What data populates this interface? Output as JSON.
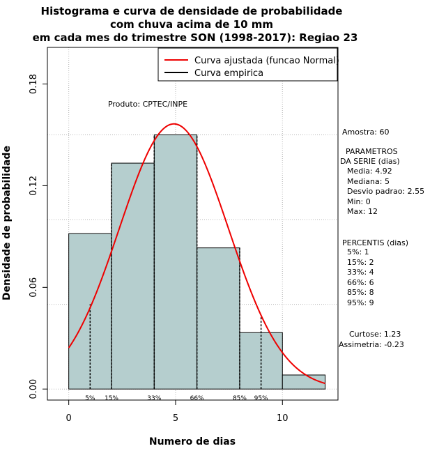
{
  "chart_data": {
    "type": "bar",
    "title_lines": [
      "Histograma e curva de densidade de probabilidade",
      "com chuva acima de 10 mm",
      "em cada mes do trimestre SON (1998-2017): Regiao 23"
    ],
    "xlabel": "Numero de dias",
    "ylabel": "Densidade de probabilidade",
    "xlim": [
      -1,
      12.6
    ],
    "ylim": [
      -0.0065,
      0.2016
    ],
    "x_ticks": [
      0,
      5,
      10
    ],
    "y_ticks": [
      0.0,
      0.06,
      0.12,
      0.18
    ],
    "y_tick_labels": [
      "0.00",
      "0.06",
      "0.12",
      "0.18"
    ],
    "bins": [
      {
        "from": 0,
        "to": 2,
        "density": 0.0917
      },
      {
        "from": 2,
        "to": 4,
        "density": 0.1333
      },
      {
        "from": 4,
        "to": 6,
        "density": 0.15
      },
      {
        "from": 6,
        "to": 8,
        "density": 0.0833
      },
      {
        "from": 8,
        "to": 10,
        "density": 0.0333
      },
      {
        "from": 10,
        "to": 12,
        "density": 0.0083
      }
    ],
    "fitted_curve": {
      "name": "Curva ajustada (funcao Normal)",
      "mean": 4.92,
      "sd": 2.55,
      "color": "#ee0000"
    },
    "empirical_curve": {
      "name": "Curva empirica",
      "color": "#000000"
    },
    "percentile_lines": [
      {
        "label": "5%",
        "x": 1,
        "density": 0.05
      },
      {
        "label": "15%",
        "x": 2,
        "density": 0.0
      },
      {
        "label": "33%",
        "x": 4,
        "density": 0.0
      },
      {
        "label": "66%",
        "x": 6,
        "density": 0.0
      },
      {
        "label": "85%",
        "x": 8,
        "density": 0.0
      },
      {
        "label": "95%",
        "x": 9,
        "density": 0.043
      }
    ],
    "vgrid_at": [
      0,
      5,
      10
    ],
    "hgrid_at": [
      0.0,
      0.05,
      0.1,
      0.15
    ],
    "legend_position": "top-right",
    "bar_color": "#b5cece",
    "annotation": "Produto: CPTEC/INPE"
  },
  "stats": {
    "amostra": "Amostra: 60",
    "params_title_1": "PARAMETROS",
    "params_title_2": "DA SERIE (dias)",
    "media": "Media: 4.92",
    "mediana": "Mediana: 5",
    "desvio": "Desvio padrao: 2.55",
    "min": "Min: 0",
    "max": "Max: 12",
    "percentis_title": "PERCENTIS (dias)",
    "p5": "5%: 1",
    "p15": "15%: 2",
    "p33": "33%: 4",
    "p66": "66%: 6",
    "p85": "85%: 8",
    "p95": "95%: 9",
    "curtose": "Curtose: 1.23",
    "assimetria": "Assimetria: -0.23"
  }
}
